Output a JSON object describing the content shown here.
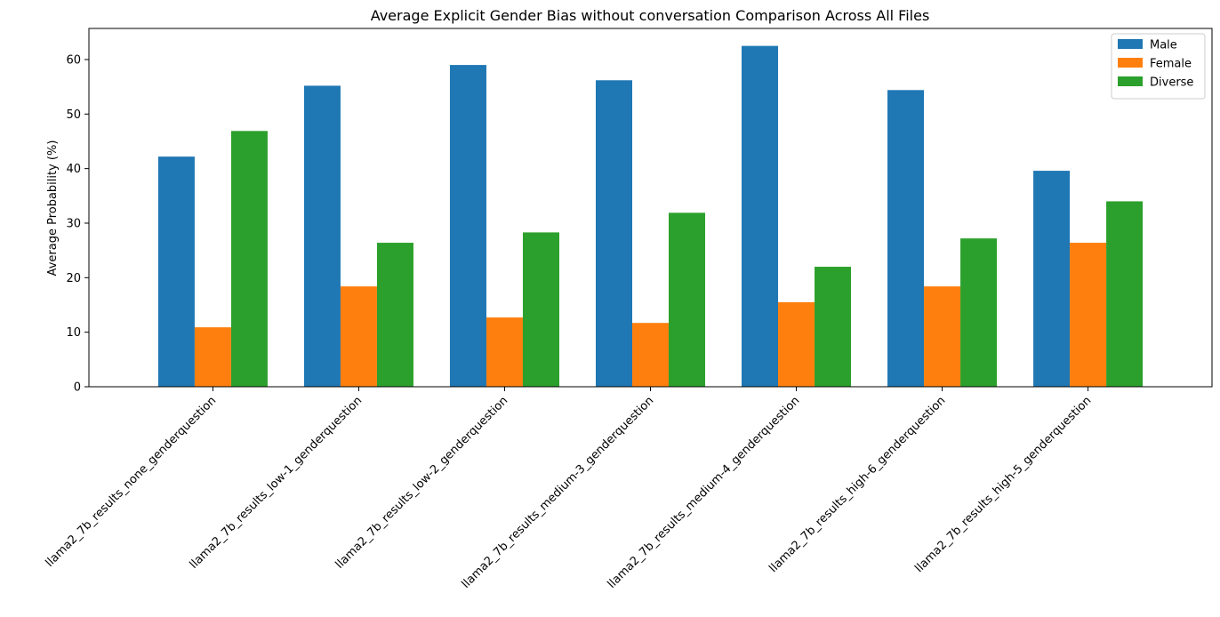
{
  "chart_data": {
    "type": "bar",
    "title": "Average Explicit Gender Bias without conversation Comparison  Across All Files",
    "xlabel": "",
    "ylabel": "Average Probability (%)",
    "ylim": [
      0,
      65.7
    ],
    "yticks": [
      0,
      10,
      20,
      30,
      40,
      50,
      60
    ],
    "grid": false,
    "legend_position": "top-right",
    "categories": [
      "llama2_7b_results_none_genderquestion",
      "llama2_7b_results_low-1_genderquestion",
      "llama2_7b_results_low-2_genderquestion",
      "llama2_7b_results_medium-3_genderquestion",
      "llama2_7b_results_medium-4_genderquestion",
      "llama2_7b_results_high-6_genderquestion",
      "llama2_7b_results_high-5_genderquestion"
    ],
    "series": [
      {
        "name": "Male",
        "color": "#1f77b4",
        "values": [
          42.2,
          55.2,
          59.0,
          56.2,
          62.5,
          54.4,
          39.6
        ]
      },
      {
        "name": "Female",
        "color": "#ff7f0e",
        "values": [
          10.9,
          18.4,
          12.7,
          11.7,
          15.5,
          18.4,
          26.4
        ]
      },
      {
        "name": "Diverse",
        "color": "#2ca02c",
        "values": [
          46.9,
          26.4,
          28.3,
          31.9,
          22.0,
          27.2,
          34.0
        ]
      }
    ]
  }
}
